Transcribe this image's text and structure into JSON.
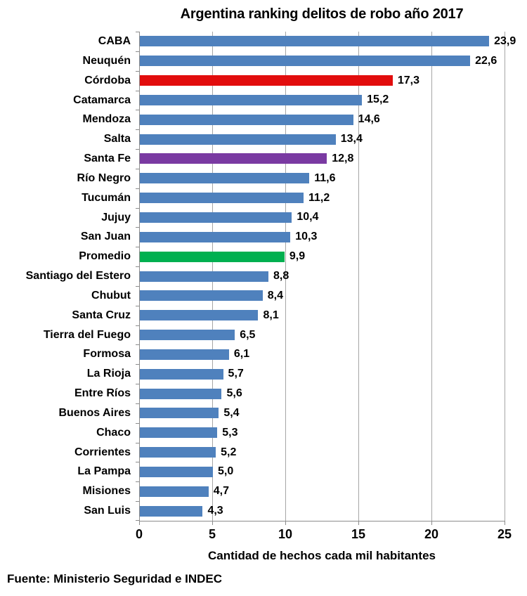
{
  "colors": {
    "bar_default": "#4F81BD",
    "highlight_cordoba": "#E20D0D",
    "highlight_santafe": "#7A3AA2",
    "highlight_promedio": "#00B050",
    "gridline": "#A6A6A6",
    "axis": "#8C8C8C",
    "text": "#000000",
    "background": "#FFFFFF"
  },
  "chart_data": {
    "type": "bar",
    "orientation": "horizontal",
    "title": "Argentina ranking delitos de robo año 2017",
    "xlabel": "Cantidad de hechos cada mil habitantes",
    "ylabel": "",
    "source": "Fuente: Ministerio Seguridad e INDEC",
    "xlim": [
      0,
      25
    ],
    "xticks": [
      0,
      5,
      10,
      15,
      20,
      25
    ],
    "xtick_labels": [
      "0",
      "5",
      "10",
      "15",
      "20",
      "25"
    ],
    "grid": true,
    "legend": false,
    "series": [
      {
        "category": "CABA",
        "value": 23.9,
        "display": "23,9",
        "color": "#4F81BD"
      },
      {
        "category": "Neuquén",
        "value": 22.6,
        "display": "22,6",
        "color": "#4F81BD"
      },
      {
        "category": "Córdoba",
        "value": 17.3,
        "display": "17,3",
        "color": "#E20D0D"
      },
      {
        "category": "Catamarca",
        "value": 15.2,
        "display": "15,2",
        "color": "#4F81BD"
      },
      {
        "category": "Mendoza",
        "value": 14.6,
        "display": "14,6",
        "color": "#4F81BD"
      },
      {
        "category": "Salta",
        "value": 13.4,
        "display": "13,4",
        "color": "#4F81BD"
      },
      {
        "category": "Santa Fe",
        "value": 12.8,
        "display": "12,8",
        "color": "#7A3AA2"
      },
      {
        "category": "Río Negro",
        "value": 11.6,
        "display": "11,6",
        "color": "#4F81BD"
      },
      {
        "category": "Tucumán",
        "value": 11.2,
        "display": "11,2",
        "color": "#4F81BD"
      },
      {
        "category": "Jujuy",
        "value": 10.4,
        "display": "10,4",
        "color": "#4F81BD"
      },
      {
        "category": "San Juan",
        "value": 10.3,
        "display": "10,3",
        "color": "#4F81BD"
      },
      {
        "category": "Promedio",
        "value": 9.9,
        "display": "9,9",
        "color": "#00B050"
      },
      {
        "category": "Santiago del Estero",
        "value": 8.8,
        "display": "8,8",
        "color": "#4F81BD"
      },
      {
        "category": "Chubut",
        "value": 8.4,
        "display": "8,4",
        "color": "#4F81BD"
      },
      {
        "category": "Santa Cruz",
        "value": 8.1,
        "display": "8,1",
        "color": "#4F81BD"
      },
      {
        "category": "Tierra del Fuego",
        "value": 6.5,
        "display": "6,5",
        "color": "#4F81BD"
      },
      {
        "category": "Formosa",
        "value": 6.1,
        "display": "6,1",
        "color": "#4F81BD"
      },
      {
        "category": "La Rioja",
        "value": 5.7,
        "display": "5,7",
        "color": "#4F81BD"
      },
      {
        "category": "Entre Ríos",
        "value": 5.6,
        "display": "5,6",
        "color": "#4F81BD"
      },
      {
        "category": "Buenos Aires",
        "value": 5.4,
        "display": "5,4",
        "color": "#4F81BD"
      },
      {
        "category": "Chaco",
        "value": 5.3,
        "display": "5,3",
        "color": "#4F81BD"
      },
      {
        "category": "Corrientes",
        "value": 5.2,
        "display": "5,2",
        "color": "#4F81BD"
      },
      {
        "category": "La Pampa",
        "value": 5.0,
        "display": "5,0",
        "color": "#4F81BD"
      },
      {
        "category": "Misiones",
        "value": 4.7,
        "display": "4,7",
        "color": "#4F81BD"
      },
      {
        "category": "San Luis",
        "value": 4.3,
        "display": "4,3",
        "color": "#4F81BD"
      }
    ]
  }
}
